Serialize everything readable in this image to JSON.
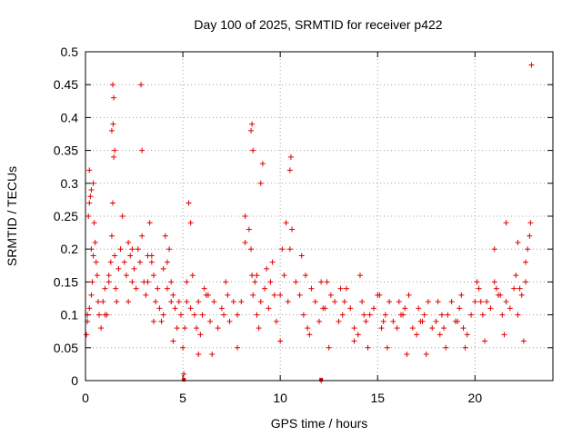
{
  "chart_data": {
    "type": "scatter",
    "title": "Day 100 of 2025, SRMTID for receiver p422",
    "xlabel": "GPS time / hours",
    "ylabel": "SRMTID / TECUs",
    "xlim": [
      0,
      24
    ],
    "ylim": [
      0,
      0.5
    ],
    "xticks": [
      0,
      5,
      10,
      15,
      20
    ],
    "xtick_labels": [
      "0",
      "5",
      "10",
      "15",
      "20"
    ],
    "yticks": [
      0,
      0.05,
      0.1,
      0.15,
      0.2,
      0.25,
      0.3,
      0.35,
      0.4,
      0.45,
      0.5
    ],
    "ytick_labels": [
      "0",
      "0.05",
      "0.1",
      "0.15",
      "0.2",
      "0.25",
      "0.3",
      "0.35",
      "0.4",
      "0.45",
      "0.5"
    ],
    "grid": true,
    "marker": "plus",
    "color": "#e00000",
    "series": [
      {
        "name": "p422",
        "x": [
          0.05,
          0.1,
          0.15,
          0.2,
          0.25,
          0.3,
          0.35,
          0.4,
          0.45,
          0.5,
          0.55,
          0.6,
          0.65,
          0.7,
          0.8,
          0.9,
          1.0,
          1.1,
          1.2,
          1.3,
          1.35,
          1.4,
          1.45,
          1.5,
          1.55,
          1.6,
          1.7,
          1.8,
          1.9,
          2.0,
          2.1,
          2.2,
          2.3,
          2.4,
          2.5,
          2.6,
          2.7,
          2.8,
          2.9,
          3.0,
          3.1,
          3.2,
          3.3,
          3.4,
          3.5,
          3.6,
          3.7,
          3.8,
          3.9,
          4.0,
          4.1,
          4.2,
          4.3,
          4.4,
          4.5,
          4.6,
          4.7,
          4.8,
          4.9,
          5.0,
          5.1,
          5.2,
          5.3,
          5.4,
          5.5,
          5.6,
          5.7,
          5.8,
          5.9,
          6.0,
          6.2,
          6.4,
          6.6,
          6.8,
          7.0,
          7.2,
          7.4,
          7.6,
          7.8,
          8.0,
          8.2,
          8.4,
          8.5,
          8.55,
          8.6,
          8.7,
          8.8,
          8.9,
          9.0,
          9.2,
          9.4,
          9.6,
          9.8,
          10.0,
          10.2,
          10.4,
          10.5,
          10.6,
          10.8,
          11.0,
          11.2,
          11.4,
          11.6,
          11.8,
          12.0,
          12.2,
          12.4,
          12.6,
          12.8,
          13.0,
          13.2,
          13.4,
          13.6,
          13.8,
          14.0,
          14.2,
          14.4,
          14.6,
          14.8,
          15.0,
          15.2,
          15.4,
          15.6,
          15.8,
          16.0,
          16.2,
          16.4,
          16.6,
          16.8,
          17.0,
          17.2,
          17.4,
          17.6,
          17.8,
          18.0,
          18.2,
          18.4,
          18.6,
          18.8,
          19.0,
          19.2,
          19.4,
          19.6,
          19.8,
          20.0,
          20.2,
          20.4,
          20.6,
          20.8,
          21.0,
          21.2,
          21.4,
          21.6,
          21.8,
          22.0,
          22.2,
          22.4,
          22.6,
          22.7,
          22.8,
          22.85,
          22.9,
          1.4,
          1.45,
          1.42,
          1.5,
          1.35,
          2.9,
          2.85,
          8.55,
          8.6,
          8.5,
          10.5,
          10.55,
          9.0,
          9.1,
          0.3,
          0.2,
          0.4,
          3.5,
          4.5,
          5.8,
          6.5,
          7.8,
          10.0,
          11.5,
          12.5,
          13.8,
          14.5,
          15.5,
          16.5,
          17.5,
          18.5,
          19.5,
          20.5,
          21.5,
          22.5,
          0.1,
          0.2,
          0.3,
          4.0,
          4.2,
          4.4,
          5.2,
          5.4,
          6.1,
          6.3,
          7.1,
          7.3,
          9.3,
          9.5,
          9.7,
          11.1,
          11.3,
          12.1,
          12.3,
          13.1,
          13.3,
          14.1,
          14.3,
          15.1,
          15.3,
          16.1,
          16.3,
          17.1,
          17.3,
          18.1,
          18.3,
          19.1,
          19.3,
          20.1,
          20.3,
          21.1,
          21.3,
          22.1,
          22.3,
          1.0,
          1.2,
          2.2,
          2.4,
          3.2,
          3.4,
          8.2,
          8.8,
          10.1,
          10.3,
          21.0,
          21.6,
          22.2,
          22.6,
          5.05,
          12.1
        ],
        "y": [
          0.07,
          0.1,
          0.25,
          0.32,
          0.28,
          0.2,
          0.15,
          0.19,
          0.24,
          0.21,
          0.18,
          0.16,
          0.12,
          0.1,
          0.08,
          0.12,
          0.14,
          0.1,
          0.15,
          0.18,
          0.22,
          0.27,
          0.34,
          0.19,
          0.14,
          0.12,
          0.17,
          0.2,
          0.25,
          0.18,
          0.16,
          0.21,
          0.19,
          0.15,
          0.17,
          0.14,
          0.2,
          0.18,
          0.22,
          0.15,
          0.13,
          0.19,
          0.24,
          0.18,
          0.16,
          0.12,
          0.14,
          0.11,
          0.09,
          0.1,
          0.22,
          0.18,
          0.2,
          0.15,
          0.13,
          0.11,
          0.08,
          0.12,
          0.1,
          0.05,
          0.08,
          0.12,
          0.27,
          0.24,
          0.16,
          0.1,
          0.08,
          0.12,
          0.07,
          0.1,
          0.13,
          0.09,
          0.12,
          0.08,
          0.11,
          0.15,
          0.09,
          0.12,
          0.1,
          0.12,
          0.21,
          0.23,
          0.2,
          0.16,
          0.13,
          0.15,
          0.1,
          0.08,
          0.12,
          0.14,
          0.11,
          0.18,
          0.09,
          0.13,
          0.16,
          0.12,
          0.2,
          0.23,
          0.15,
          0.13,
          0.1,
          0.08,
          0.14,
          0.12,
          0.09,
          0.11,
          0.15,
          0.13,
          0.12,
          0.09,
          0.1,
          0.14,
          0.11,
          0.08,
          0.07,
          0.12,
          0.09,
          0.1,
          0.11,
          0.13,
          0.08,
          0.1,
          0.12,
          0.09,
          0.08,
          0.1,
          0.11,
          0.13,
          0.08,
          0.07,
          0.09,
          0.1,
          0.12,
          0.08,
          0.09,
          0.07,
          0.08,
          0.1,
          0.12,
          0.09,
          0.11,
          0.08,
          0.07,
          0.1,
          0.12,
          0.14,
          0.1,
          0.12,
          0.11,
          0.15,
          0.13,
          0.1,
          0.12,
          0.11,
          0.14,
          0.1,
          0.13,
          0.15,
          0.2,
          0.22,
          0.24,
          0.48,
          0.45,
          0.43,
          0.39,
          0.35,
          0.38,
          0.35,
          0.45,
          0.39,
          0.35,
          0.38,
          0.32,
          0.34,
          0.3,
          0.33,
          0.29,
          0.27,
          0.3,
          0.09,
          0.06,
          0.04,
          0.04,
          0.05,
          0.06,
          0.07,
          0.05,
          0.06,
          0.05,
          0.05,
          0.04,
          0.04,
          0.05,
          0.05,
          0.06,
          0.07,
          0.06,
          0.09,
          0.11,
          0.13,
          0.17,
          0.14,
          0.12,
          0.15,
          0.11,
          0.14,
          0.13,
          0.1,
          0.13,
          0.17,
          0.15,
          0.13,
          0.19,
          0.16,
          0.15,
          0.11,
          0.14,
          0.12,
          0.16,
          0.1,
          0.13,
          0.09,
          0.12,
          0.1,
          0.11,
          0.09,
          0.12,
          0.1,
          0.09,
          0.13,
          0.15,
          0.12,
          0.14,
          0.13,
          0.16,
          0.14,
          0.1,
          0.16,
          0.12,
          0.2,
          0.15,
          0.19,
          0.25,
          0.16,
          0.2,
          0.24,
          0.2,
          0.24,
          0.21,
          0.18,
          0.01,
          0.0
        ]
      }
    ],
    "axis_markers_x": [
      5.05,
      12.1
    ]
  }
}
